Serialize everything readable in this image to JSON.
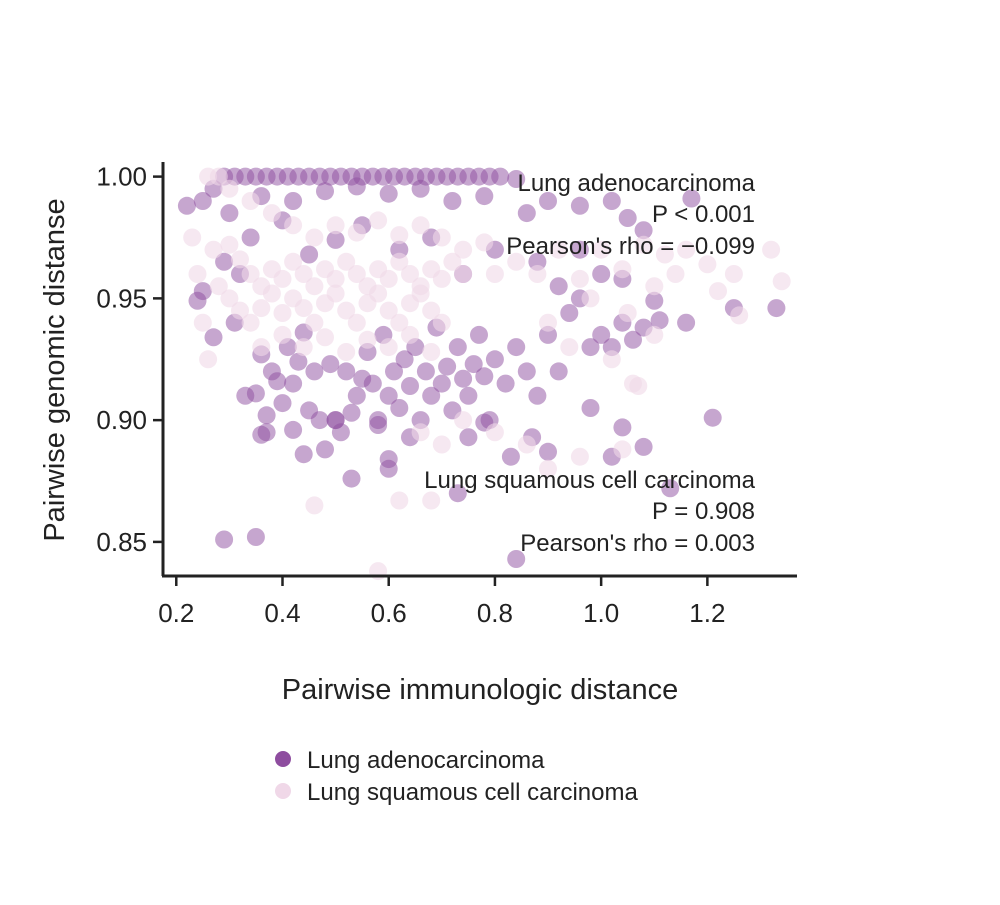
{
  "chart_data": {
    "type": "scatter",
    "title": "",
    "xlabel": "Pairwise immunologic distance",
    "ylabel": "Pairwise genomic distanse",
    "xlim": [
      0.175,
      1.365
    ],
    "ylim": [
      0.836,
      1.006
    ],
    "xticks": [
      "0.2",
      "0.4",
      "0.6",
      "0.8",
      "1.0",
      "1.2"
    ],
    "yticks": [
      "0.85",
      "0.90",
      "0.95",
      "1.00"
    ],
    "grid": false,
    "legend_position": "bottom",
    "colors": {
      "adeno": "#8e4d9f",
      "squamous": "#f0d8e8"
    },
    "annotations": {
      "adeno": [
        "Lung adenocarcinoma",
        "P < 0.001",
        "Pearson's rho = −0.099"
      ],
      "squamous": [
        "Lung squamous cell carcinoma",
        "P = 0.908",
        "Pearson's rho = 0.003"
      ]
    },
    "series": [
      {
        "name": "Lung adenocarcinoma",
        "color": "#8e4d9f",
        "points": [
          [
            0.22,
            0.988
          ],
          [
            0.25,
            0.99
          ],
          [
            0.27,
            0.995
          ],
          [
            0.29,
            1.0
          ],
          [
            0.31,
            1.0
          ],
          [
            0.33,
            1.0
          ],
          [
            0.35,
            1.0
          ],
          [
            0.37,
            1.0
          ],
          [
            0.39,
            1.0
          ],
          [
            0.41,
            1.0
          ],
          [
            0.43,
            1.0
          ],
          [
            0.45,
            1.0
          ],
          [
            0.47,
            1.0
          ],
          [
            0.49,
            1.0
          ],
          [
            0.51,
            1.0
          ],
          [
            0.53,
            1.0
          ],
          [
            0.55,
            1.0
          ],
          [
            0.57,
            1.0
          ],
          [
            0.59,
            1.0
          ],
          [
            0.61,
            1.0
          ],
          [
            0.63,
            1.0
          ],
          [
            0.65,
            1.0
          ],
          [
            0.67,
            1.0
          ],
          [
            0.69,
            1.0
          ],
          [
            0.71,
            1.0
          ],
          [
            0.73,
            1.0
          ],
          [
            0.75,
            1.0
          ],
          [
            0.77,
            1.0
          ],
          [
            0.79,
            1.0
          ],
          [
            0.81,
            1.0
          ],
          [
            0.84,
            0.999
          ],
          [
            0.3,
            0.985
          ],
          [
            0.36,
            0.992
          ],
          [
            0.42,
            0.99
          ],
          [
            0.48,
            0.994
          ],
          [
            0.54,
            0.996
          ],
          [
            0.6,
            0.993
          ],
          [
            0.66,
            0.995
          ],
          [
            0.72,
            0.99
          ],
          [
            0.78,
            0.992
          ],
          [
            0.86,
            0.985
          ],
          [
            0.9,
            0.99
          ],
          [
            0.96,
            0.988
          ],
          [
            1.02,
            0.99
          ],
          [
            1.05,
            0.983
          ],
          [
            1.08,
            0.978
          ],
          [
            1.17,
            0.991
          ],
          [
            0.24,
            0.949
          ],
          [
            0.25,
            0.953
          ],
          [
            0.27,
            0.934
          ],
          [
            0.29,
            0.965
          ],
          [
            0.31,
            0.94
          ],
          [
            0.33,
            0.91
          ],
          [
            0.35,
            0.911
          ],
          [
            0.36,
            0.927
          ],
          [
            0.37,
            0.902
          ],
          [
            0.37,
            0.895
          ],
          [
            0.38,
            0.92
          ],
          [
            0.39,
            0.916
          ],
          [
            0.4,
            0.907
          ],
          [
            0.41,
            0.93
          ],
          [
            0.42,
            0.915
          ],
          [
            0.43,
            0.924
          ],
          [
            0.44,
            0.936
          ],
          [
            0.45,
            0.904
          ],
          [
            0.46,
            0.92
          ],
          [
            0.47,
            0.9
          ],
          [
            0.48,
            0.888
          ],
          [
            0.49,
            0.923
          ],
          [
            0.5,
            0.9
          ],
          [
            0.51,
            0.895
          ],
          [
            0.52,
            0.92
          ],
          [
            0.53,
            0.903
          ],
          [
            0.54,
            0.91
          ],
          [
            0.55,
            0.917
          ],
          [
            0.56,
            0.928
          ],
          [
            0.57,
            0.915
          ],
          [
            0.58,
            0.9
          ],
          [
            0.59,
            0.935
          ],
          [
            0.6,
            0.91
          ],
          [
            0.61,
            0.92
          ],
          [
            0.62,
            0.905
          ],
          [
            0.63,
            0.925
          ],
          [
            0.64,
            0.914
          ],
          [
            0.65,
            0.93
          ],
          [
            0.66,
            0.9
          ],
          [
            0.67,
            0.92
          ],
          [
            0.68,
            0.91
          ],
          [
            0.69,
            0.938
          ],
          [
            0.7,
            0.915
          ],
          [
            0.71,
            0.922
          ],
          [
            0.72,
            0.904
          ],
          [
            0.73,
            0.93
          ],
          [
            0.74,
            0.917
          ],
          [
            0.75,
            0.91
          ],
          [
            0.76,
            0.923
          ],
          [
            0.77,
            0.935
          ],
          [
            0.78,
            0.918
          ],
          [
            0.79,
            0.9
          ],
          [
            0.8,
            0.925
          ],
          [
            0.82,
            0.915
          ],
          [
            0.84,
            0.93
          ],
          [
            0.86,
            0.92
          ],
          [
            0.88,
            0.91
          ],
          [
            0.9,
            0.935
          ],
          [
            0.92,
            0.92
          ],
          [
            0.94,
            0.944
          ],
          [
            0.96,
            0.95
          ],
          [
            0.98,
            0.93
          ],
          [
            1.0,
            0.935
          ],
          [
            1.02,
            0.93
          ],
          [
            1.04,
            0.94
          ],
          [
            1.06,
            0.933
          ],
          [
            1.08,
            0.938
          ],
          [
            1.1,
            0.949
          ],
          [
            1.11,
            0.941
          ],
          [
            1.16,
            0.94
          ],
          [
            1.25,
            0.946
          ],
          [
            1.33,
            0.946
          ],
          [
            0.36,
            0.894
          ],
          [
            0.42,
            0.896
          ],
          [
            0.44,
            0.886
          ],
          [
            0.5,
            0.9
          ],
          [
            0.53,
            0.876
          ],
          [
            0.58,
            0.898
          ],
          [
            0.6,
            0.884
          ],
          [
            0.6,
            0.88
          ],
          [
            0.64,
            0.893
          ],
          [
            0.73,
            0.87
          ],
          [
            0.75,
            0.893
          ],
          [
            0.78,
            0.899
          ],
          [
            0.83,
            0.885
          ],
          [
            0.87,
            0.893
          ],
          [
            0.9,
            0.887
          ],
          [
            0.98,
            0.905
          ],
          [
            1.02,
            0.885
          ],
          [
            1.04,
            0.897
          ],
          [
            1.08,
            0.889
          ],
          [
            1.21,
            0.901
          ],
          [
            1.13,
            0.872
          ],
          [
            0.29,
            0.851
          ],
          [
            0.35,
            0.852
          ],
          [
            0.84,
            0.843
          ],
          [
            0.32,
            0.96
          ],
          [
            0.34,
            0.975
          ],
          [
            0.4,
            0.982
          ],
          [
            0.45,
            0.968
          ],
          [
            0.5,
            0.974
          ],
          [
            0.55,
            0.98
          ],
          [
            0.62,
            0.97
          ],
          [
            0.68,
            0.975
          ],
          [
            0.74,
            0.96
          ],
          [
            0.8,
            0.97
          ],
          [
            0.88,
            0.965
          ],
          [
            0.92,
            0.955
          ],
          [
            0.96,
            0.97
          ],
          [
            1.0,
            0.96
          ],
          [
            1.04,
            0.958
          ]
        ]
      },
      {
        "name": "Lung squamous cell carcinoma",
        "color": "#f0d8e8",
        "points": [
          [
            0.26,
            1.0
          ],
          [
            0.28,
            1.0
          ],
          [
            0.3,
            0.995
          ],
          [
            0.34,
            0.99
          ],
          [
            0.38,
            0.985
          ],
          [
            0.42,
            0.98
          ],
          [
            0.46,
            0.975
          ],
          [
            0.5,
            0.98
          ],
          [
            0.54,
            0.977
          ],
          [
            0.58,
            0.982
          ],
          [
            0.62,
            0.976
          ],
          [
            0.66,
            0.98
          ],
          [
            0.7,
            0.975
          ],
          [
            0.74,
            0.97
          ],
          [
            0.78,
            0.973
          ],
          [
            0.3,
            0.972
          ],
          [
            0.32,
            0.966
          ],
          [
            0.34,
            0.96
          ],
          [
            0.36,
            0.955
          ],
          [
            0.38,
            0.962
          ],
          [
            0.4,
            0.958
          ],
          [
            0.42,
            0.965
          ],
          [
            0.44,
            0.96
          ],
          [
            0.46,
            0.955
          ],
          [
            0.48,
            0.962
          ],
          [
            0.5,
            0.958
          ],
          [
            0.52,
            0.965
          ],
          [
            0.54,
            0.96
          ],
          [
            0.56,
            0.955
          ],
          [
            0.58,
            0.962
          ],
          [
            0.6,
            0.958
          ],
          [
            0.62,
            0.965
          ],
          [
            0.64,
            0.96
          ],
          [
            0.66,
            0.955
          ],
          [
            0.68,
            0.962
          ],
          [
            0.7,
            0.958
          ],
          [
            0.72,
            0.965
          ],
          [
            0.74,
            0.96
          ],
          [
            0.3,
            0.95
          ],
          [
            0.32,
            0.945
          ],
          [
            0.34,
            0.94
          ],
          [
            0.36,
            0.946
          ],
          [
            0.38,
            0.952
          ],
          [
            0.4,
            0.944
          ],
          [
            0.42,
            0.95
          ],
          [
            0.44,
            0.946
          ],
          [
            0.46,
            0.94
          ],
          [
            0.48,
            0.948
          ],
          [
            0.5,
            0.952
          ],
          [
            0.52,
            0.945
          ],
          [
            0.54,
            0.94
          ],
          [
            0.56,
            0.948
          ],
          [
            0.58,
            0.952
          ],
          [
            0.6,
            0.945
          ],
          [
            0.62,
            0.94
          ],
          [
            0.64,
            0.948
          ],
          [
            0.66,
            0.952
          ],
          [
            0.68,
            0.945
          ],
          [
            0.7,
            0.94
          ],
          [
            0.36,
            0.93
          ],
          [
            0.4,
            0.935
          ],
          [
            0.44,
            0.93
          ],
          [
            0.48,
            0.934
          ],
          [
            0.52,
            0.928
          ],
          [
            0.56,
            0.933
          ],
          [
            0.6,
            0.93
          ],
          [
            0.64,
            0.935
          ],
          [
            0.68,
            0.928
          ],
          [
            0.23,
            0.975
          ],
          [
            0.24,
            0.96
          ],
          [
            0.25,
            0.94
          ],
          [
            0.26,
            0.925
          ],
          [
            0.27,
            0.97
          ],
          [
            0.28,
            0.955
          ],
          [
            0.8,
            0.96
          ],
          [
            0.84,
            0.965
          ],
          [
            0.88,
            0.96
          ],
          [
            0.92,
            0.97
          ],
          [
            0.96,
            0.958
          ],
          [
            1.0,
            0.97
          ],
          [
            1.04,
            0.962
          ],
          [
            1.08,
            0.972
          ],
          [
            1.12,
            0.968
          ],
          [
            1.16,
            0.97
          ],
          [
            1.2,
            0.964
          ],
          [
            1.25,
            0.96
          ],
          [
            1.32,
            0.97
          ],
          [
            1.34,
            0.957
          ],
          [
            1.22,
            0.953
          ],
          [
            1.26,
            0.943
          ],
          [
            1.1,
            0.955
          ],
          [
            1.14,
            0.96
          ],
          [
            0.9,
            0.94
          ],
          [
            0.94,
            0.93
          ],
          [
            0.98,
            0.95
          ],
          [
            1.02,
            0.925
          ],
          [
            1.06,
            0.915
          ],
          [
            1.1,
            0.935
          ],
          [
            1.05,
            0.944
          ],
          [
            1.07,
            0.914
          ],
          [
            0.66,
            0.895
          ],
          [
            0.7,
            0.89
          ],
          [
            0.74,
            0.9
          ],
          [
            0.8,
            0.895
          ],
          [
            0.86,
            0.89
          ],
          [
            0.9,
            0.88
          ],
          [
            0.96,
            0.885
          ],
          [
            1.04,
            0.888
          ],
          [
            0.46,
            0.865
          ],
          [
            0.62,
            0.867
          ],
          [
            0.68,
            0.867
          ],
          [
            0.58,
            0.838
          ]
        ]
      }
    ]
  }
}
